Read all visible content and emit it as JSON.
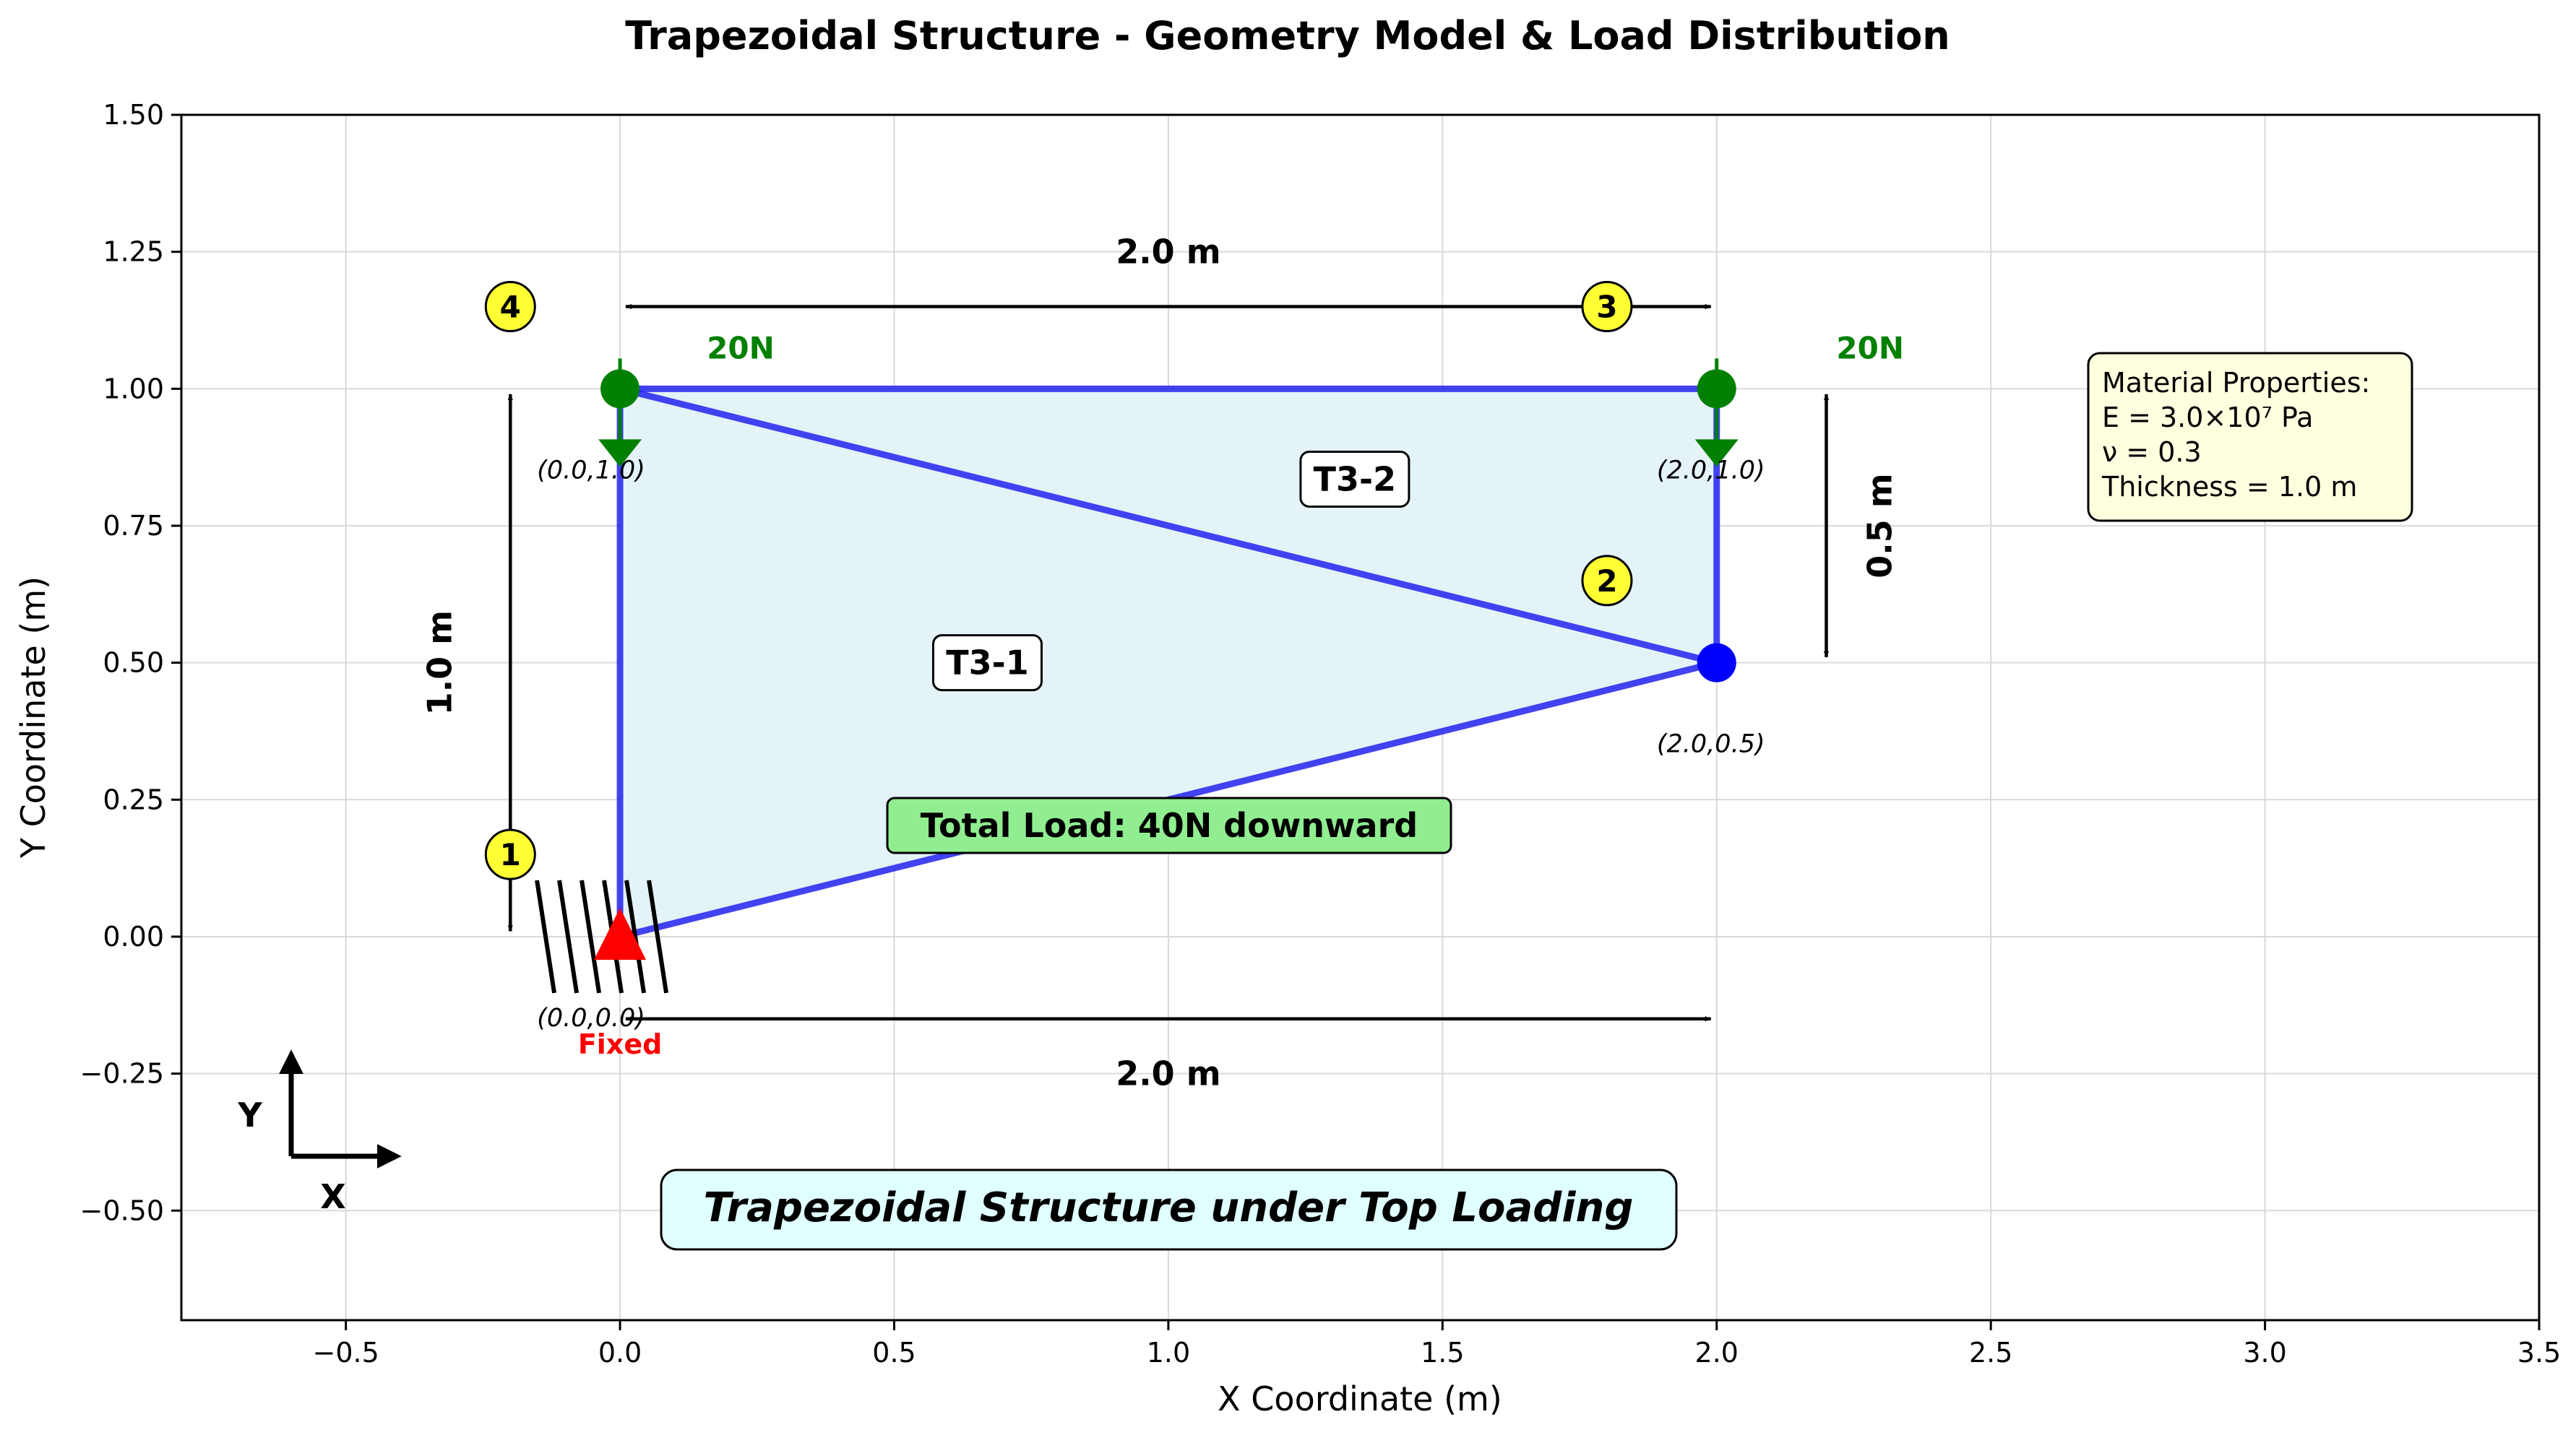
{
  "title": "Trapezoidal Structure - Geometry Model & Load Distribution",
  "axes": {
    "xlabel": "X Coordinate (m)",
    "ylabel": "Y Coordinate (m)",
    "xlim": [
      -0.8,
      3.5
    ],
    "ylim": [
      -0.7,
      1.5
    ],
    "xticks": [
      {
        "value": -0.5,
        "label": "−0.5"
      },
      {
        "value": 0.0,
        "label": "0.0"
      },
      {
        "value": 0.5,
        "label": "0.5"
      },
      {
        "value": 1.0,
        "label": "1.0"
      },
      {
        "value": 1.5,
        "label": "1.5"
      },
      {
        "value": 2.0,
        "label": "2.0"
      },
      {
        "value": 2.5,
        "label": "2.5"
      },
      {
        "value": 3.0,
        "label": "3.0"
      },
      {
        "value": 3.5,
        "label": "3.5"
      }
    ],
    "yticks": [
      {
        "value": -0.5,
        "label": "−0.50"
      },
      {
        "value": -0.25,
        "label": "−0.25"
      },
      {
        "value": 0.0,
        "label": "0.00"
      },
      {
        "value": 0.25,
        "label": "0.25"
      },
      {
        "value": 0.5,
        "label": "0.50"
      },
      {
        "value": 0.75,
        "label": "0.75"
      },
      {
        "value": 1.0,
        "label": "1.00"
      },
      {
        "value": 1.25,
        "label": "1.25"
      },
      {
        "value": 1.5,
        "label": "1.50"
      }
    ],
    "grid": true
  },
  "nodes": [
    {
      "id": "1",
      "x": 0.0,
      "y": 0.0,
      "coord_label": "(0.0,0.0)",
      "number_x": -0.2,
      "number_y": 0.15,
      "color": "#ff0000"
    },
    {
      "id": "2",
      "x": 2.0,
      "y": 0.5,
      "coord_label": "(2.0,0.5)",
      "number_x": 1.8,
      "number_y": 0.65,
      "color": "#0000ff"
    },
    {
      "id": "3",
      "x": 2.0,
      "y": 1.0,
      "coord_label": "(2.0,1.0)",
      "number_x": 1.8,
      "number_y": 1.15,
      "color": "#008000"
    },
    {
      "id": "4",
      "x": 0.0,
      "y": 1.0,
      "coord_label": "(0.0,1.0)",
      "number_x": -0.2,
      "number_y": 1.15,
      "color": "#008000"
    }
  ],
  "elements": [
    {
      "name": "T3-1",
      "label_x": 0.67,
      "label_y": 0.5
    },
    {
      "name": "T3-2",
      "label_x": 1.34,
      "label_y": 0.835
    }
  ],
  "loads": [
    {
      "label": "20N",
      "x": 0.0,
      "y": 1.0,
      "label_x": 0.22
    },
    {
      "label": "20N",
      "x": 2.0,
      "y": 1.0,
      "label_x": 2.28
    }
  ],
  "support": {
    "label": "Fixed"
  },
  "dimensions": {
    "top_width": "2.0 m",
    "bottom_width": "2.0 m",
    "left_height": "1.0 m",
    "right_height": "0.5 m"
  },
  "total_load": "Total Load: 40N downward",
  "material": {
    "header": "Material Properties:",
    "E": "E = 3.0×10⁷ Pa",
    "nu": "ν = 0.3",
    "thickness": "Thickness = 1.0 m"
  },
  "caption": "Trapezoidal Structure under Top Loading",
  "axis_indicator": {
    "x_label": "X",
    "y_label": "Y"
  },
  "colors": {
    "structure": "#2222ee",
    "fill": "#e4f3f8",
    "load": "#008000",
    "fixed": "#ff0000",
    "node_badge": "#ffff33",
    "total_load_box": "#90ee90",
    "material_box": "#ffffe0",
    "caption_box": "#e0ffff"
  }
}
